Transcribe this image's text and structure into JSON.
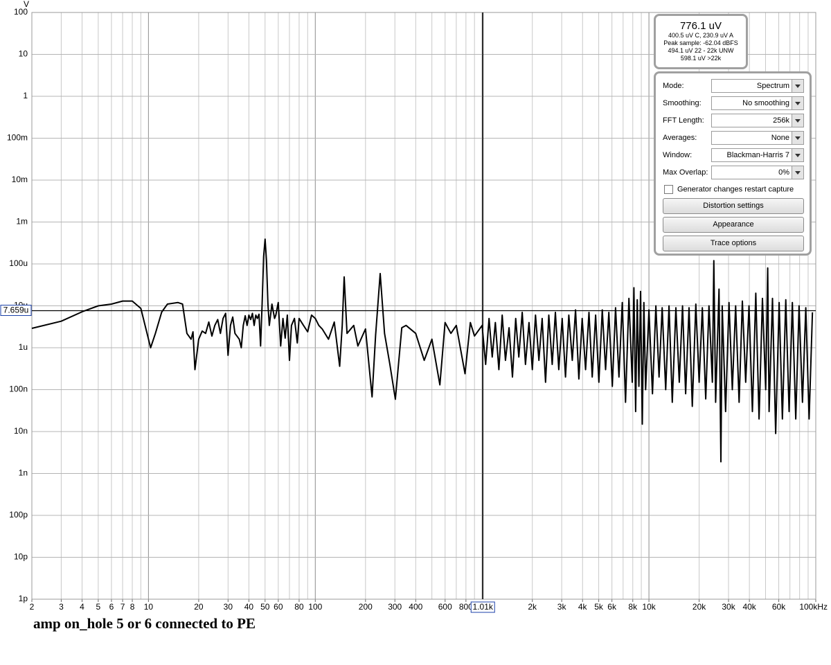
{
  "chart_data": {
    "type": "line",
    "y_label": "V",
    "color": "#000000",
    "log_x": true,
    "log_y": true,
    "grid": true,
    "xlim": [
      2,
      100000
    ],
    "ylim": [
      1e-12,
      100
    ],
    "xticks": [
      2,
      3,
      4,
      5,
      6,
      7,
      8,
      10,
      20,
      30,
      40,
      50,
      60,
      80,
      100,
      200,
      300,
      400,
      600,
      800,
      {
        "value": 2000,
        "label": "2k"
      },
      {
        "value": 3000,
        "label": "3k"
      },
      {
        "value": 4000,
        "label": "4k"
      },
      {
        "value": 5000,
        "label": "5k"
      },
      {
        "value": 6000,
        "label": "6k"
      },
      {
        "value": 8000,
        "label": "8k"
      },
      {
        "value": 10000,
        "label": "10k"
      },
      {
        "value": 20000,
        "label": "20k"
      },
      {
        "value": 30000,
        "label": "30k"
      },
      {
        "value": 40000,
        "label": "40k"
      },
      {
        "value": 60000,
        "label": "60k"
      },
      {
        "value": 100000,
        "label": "100kHz"
      }
    ],
    "yticks": [
      100,
      10,
      1,
      {
        "value": 0.1,
        "label": "100m"
      },
      {
        "value": 0.01,
        "label": "10m"
      },
      {
        "value": 0.001,
        "label": "1m"
      },
      {
        "value": 0.0001,
        "label": "100u"
      },
      {
        "value": 1e-05,
        "label": "10u"
      },
      {
        "value": 1e-06,
        "label": "1u"
      },
      {
        "value": 1e-07,
        "label": "100n"
      },
      {
        "value": 1e-08,
        "label": "10n"
      },
      {
        "value": 1e-09,
        "label": "1n"
      },
      {
        "value": 1e-10,
        "label": "100p"
      },
      {
        "value": 1e-11,
        "label": "10p"
      },
      {
        "value": 1e-12,
        "label": "1p"
      }
    ],
    "cursor": {
      "x": 1010,
      "x_label": "1.01k",
      "y": 7.659e-06,
      "y_label": "7.659u"
    },
    "x": [
      2,
      3,
      4,
      5,
      6,
      7,
      8,
      9,
      10.3,
      11,
      12,
      13,
      15,
      16,
      17,
      18,
      18.5,
      19,
      20,
      21,
      22,
      23,
      24,
      25,
      26,
      27,
      28,
      29,
      30,
      31,
      32,
      33,
      35,
      36,
      37,
      38,
      39,
      40,
      41,
      42,
      43,
      44,
      45,
      46,
      47,
      48,
      49,
      50,
      51,
      52,
      53,
      55,
      57,
      58,
      60,
      62,
      64,
      66,
      68,
      70,
      72,
      75,
      78,
      80,
      85,
      90,
      95,
      100,
      105,
      110,
      120,
      130,
      140,
      145,
      149,
      155,
      170,
      180,
      200,
      219,
      230,
      245,
      260,
      280,
      302,
      330,
      350,
      400,
      450,
      500,
      558,
      600,
      650,
      700,
      790,
      850,
      900,
      1000,
      1050,
      1100,
      1150,
      1200,
      1260,
      1320,
      1380,
      1450,
      1520,
      1590,
      1660,
      1740,
      1820,
      1910,
      2000,
      2090,
      2190,
      2290,
      2400,
      2510,
      2630,
      2750,
      2880,
      3020,
      3160,
      3310,
      3470,
      3630,
      3800,
      3980,
      4170,
      4370,
      4570,
      4790,
      5010,
      5250,
      5500,
      5750,
      6030,
      6310,
      6610,
      6920,
      7240,
      7590,
      7940,
      8130,
      8320,
      8510,
      8710,
      8910,
      9120,
      9330,
      9550,
      10000,
      10500,
      11000,
      11500,
      12000,
      12600,
      13200,
      13800,
      14500,
      15200,
      15900,
      16600,
      17400,
      18200,
      19100,
      20000,
      20900,
      21900,
      22900,
      24000,
      24500,
      25100,
      26300,
      27000,
      27500,
      28800,
      30200,
      31600,
      33100,
      34700,
      36300,
      38000,
      39800,
      41700,
      43700,
      45700,
      47900,
      50100,
      51500,
      52500,
      55000,
      57500,
      60300,
      63100,
      66100,
      69200,
      72400,
      75900,
      79400,
      83200,
      87100,
      91200,
      95500
    ],
    "values": [
      2.9e-06,
      4.3e-06,
      7.2e-06,
      1e-05,
      1.1e-05,
      1.3e-05,
      1.3e-05,
      8.7e-06,
      1e-06,
      2.2e-06,
      7.1e-06,
      1.1e-05,
      1.2e-05,
      1.1e-05,
      2.2e-06,
      1.6e-06,
      2.4e-06,
      3e-07,
      1.6e-06,
      2.5e-06,
      2.2e-06,
      4.1e-06,
      1.9e-06,
      3.4e-06,
      4.7e-06,
      2.2e-06,
      5e-06,
      6.6e-06,
      6.6e-07,
      3.4e-06,
      5.4e-06,
      2.2e-06,
      1.6e-06,
      1e-06,
      3.4e-06,
      5.8e-06,
      3.4e-06,
      6e-06,
      4.7e-06,
      6.6e-06,
      3.4e-06,
      6e-06,
      5e-06,
      6.3e-06,
      1.1e-06,
      1.1e-05,
      0.00015,
      0.00039,
      0.00012,
      1.1e-05,
      3.4e-06,
      1.1e-05,
      5e-06,
      6e-06,
      1.2e-05,
      1.1e-06,
      5e-06,
      1.7e-06,
      6e-06,
      5e-07,
      3.4e-06,
      5e-06,
      1.3e-06,
      5e-06,
      3.4e-06,
      2.4e-06,
      6e-06,
      5e-06,
      3.4e-06,
      2.8e-06,
      1.6e-06,
      4.1e-06,
      3.6e-07,
      3.4e-06,
      4.9e-05,
      2.2e-06,
      3.4e-06,
      1.1e-06,
      2.8e-06,
      6.7e-08,
      2e-06,
      5.9e-05,
      2.2e-06,
      4e-07,
      5.9e-08,
      3e-06,
      3.4e-06,
      2.2e-06,
      5e-07,
      1.6e-06,
      1.3e-07,
      4e-06,
      2.2e-06,
      3.4e-06,
      2.4e-07,
      4e-06,
      1.9e-06,
      3.4e-06,
      4e-07,
      5e-06,
      6e-07,
      4e-06,
      3e-07,
      6e-06,
      5e-07,
      3e-06,
      2e-07,
      5e-06,
      6e-07,
      7e-06,
      4e-07,
      4e-06,
      3e-07,
      6e-06,
      5e-07,
      5e-06,
      1.5e-07,
      6e-06,
      4e-07,
      7e-06,
      3e-07,
      5e-06,
      2e-07,
      6e-06,
      5e-07,
      8e-06,
      1.8e-07,
      5e-06,
      3e-07,
      7e-06,
      2e-07,
      6e-06,
      1.5e-07,
      8e-06,
      3e-07,
      7e-06,
      1.2e-07,
      9e-06,
      2e-07,
      1.2e-05,
      5e-08,
      1.5e-05,
      1.5e-07,
      2.7e-05,
      3e-08,
      1.4e-05,
      1.2e-07,
      2.2e-05,
      1.5e-08,
      1.2e-05,
      1e-07,
      8e-06,
      8e-08,
      1e-05,
      2e-07,
      9e-06,
      1e-07,
      1e-05,
      5e-08,
      9e-06,
      1.5e-07,
      1e-05,
      8e-08,
      9e-06,
      4e-08,
      1.1e-05,
      1.5e-07,
      9e-06,
      6e-08,
      1e-05,
      1.5e-07,
      0.00012,
      5e-08,
      2.5e-05,
      1.9e-09,
      1e-05,
      3e-08,
      1.2e-05,
      1e-07,
      1e-05,
      5e-08,
      1.3e-05,
      1.5e-07,
      1e-05,
      3e-08,
      2e-05,
      2e-08,
      1.5e-05,
      1e-07,
      8e-05,
      3e-08,
      1.5e-05,
      9e-09,
      1.2e-05,
      2e-08,
      1.4e-05,
      3e-08,
      1.2e-05,
      2e-08,
      1e-05,
      5e-08,
      9e-06,
      2e-08,
      7e-06
    ]
  },
  "caption": "amp on_hole 5 or 6 connected to PE",
  "readout": {
    "main": "776.1 uV",
    "lines": [
      "400.5 uV C, 230.9 uV A",
      "Peak sample: -62.04 dBFS",
      "494.1 uV 22 - 22k UNW",
      "598.1 uV >22k"
    ]
  },
  "controls": {
    "settings": [
      {
        "label": "Mode:",
        "value": "Spectrum"
      },
      {
        "label": "Smoothing:",
        "value": "No  smoothing"
      },
      {
        "label": "FFT Length:",
        "value": "256k"
      },
      {
        "label": "Averages:",
        "value": "None"
      },
      {
        "label": "Window:",
        "value": "Blackman-Harris 7"
      },
      {
        "label": "Max Overlap:",
        "value": "0%"
      }
    ],
    "checkbox": "Generator changes restart capture",
    "buttons": [
      "Distortion settings",
      "Appearance",
      "Trace options"
    ]
  }
}
